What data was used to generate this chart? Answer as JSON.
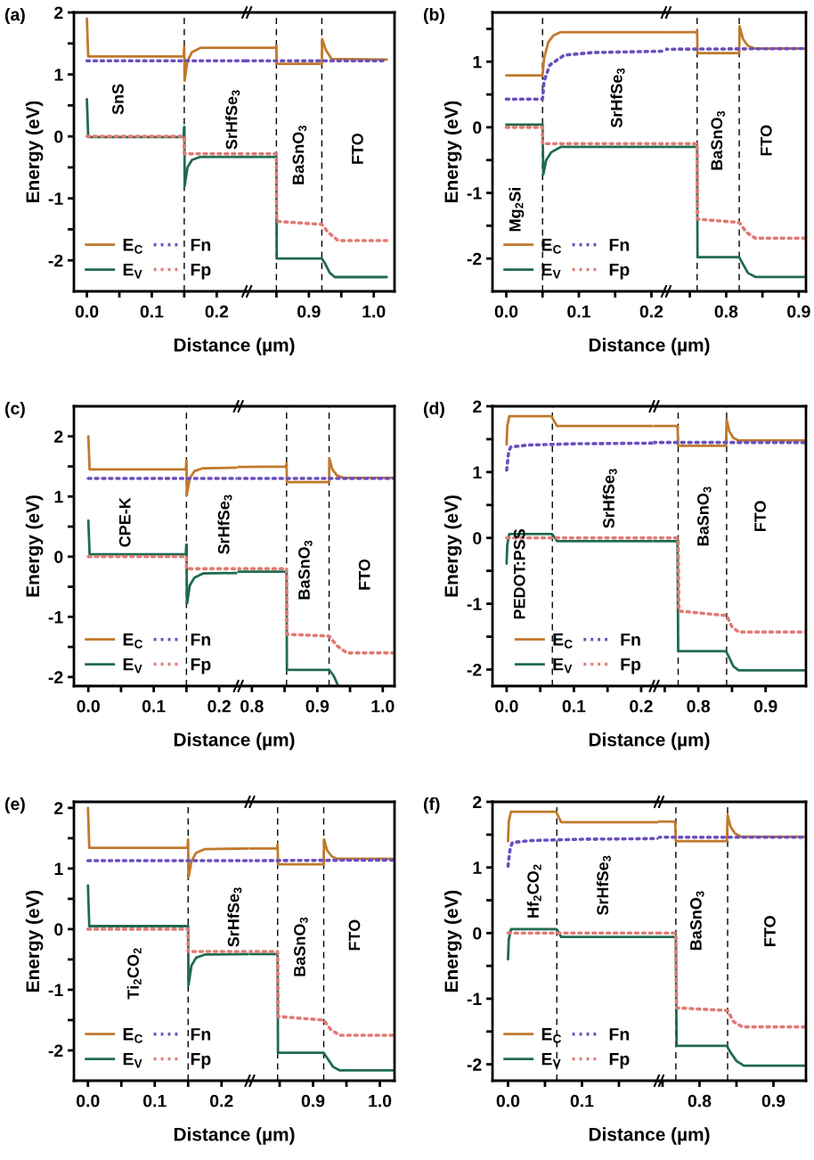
{
  "chart_data": [
    {
      "type": "line",
      "title": "(a)",
      "xlabel": "Distance (µm)",
      "ylabel": "Energy (eV)",
      "legend": "bottom left",
      "xlim": [
        -0.02,
        0.245
      ],
      "ylim": [
        -2.5,
        2
      ],
      "xticks": [
        {
          "value": 0,
          "label": "0.0"
        },
        {
          "value": 0.05,
          "label": null
        },
        {
          "value": 0.1,
          "label": "0.1"
        },
        {
          "value": 0.15,
          "label": null
        },
        {
          "value": 0.2,
          "label": "0.2"
        }
      ],
      "yticks": [
        -2,
        {
          "value": -1.5,
          "label": null
        },
        -1,
        {
          "value": -0.5,
          "label": null
        },
        0,
        {
          "value": 0.5,
          "label": null
        },
        1,
        {
          "value": 1.5,
          "label": null
        },
        2
      ],
      "series": [
        {
          "name": "E$_{C}$",
          "color": "#c0792c",
          "line_style": "solid",
          "x": [
            0,
            0.002,
            0.149,
            0.15,
            0.1505,
            0.155,
            0.162,
            0.175,
            0.245
          ],
          "values": [
            1.9,
            1.29,
            1.29,
            1.45,
            0.9,
            1.22,
            1.36,
            1.43,
            1.43
          ]
        },
        {
          "name": "E$_{V}$",
          "color": "#1f6b4f",
          "line_style": "solid",
          "x": [
            0,
            0.002,
            0.149,
            0.1497,
            0.1503,
            0.1506,
            0.155,
            0.162,
            0.175,
            0.245
          ],
          "values": [
            0.6,
            -0.01,
            -0.01,
            0.15,
            0.15,
            -0.8,
            -0.5,
            -0.38,
            -0.33,
            -0.33
          ]
        },
        {
          "name": "Fn",
          "color": "#6b4fbf",
          "line_style": "dotted",
          "x": [
            0,
            0.245
          ],
          "values": [
            1.22,
            1.22
          ]
        },
        {
          "name": "Fp",
          "color": "#e07b74",
          "line_style": "dotted",
          "x": [
            0,
            0.15,
            0.15,
            0.245
          ],
          "values": [
            0,
            0,
            -0.28,
            -0.28
          ]
        }
      ],
      "ref_lines": [
        {
          "axis": "x",
          "value": 0.15,
          "color": "#000000",
          "line_style": "dashed"
        }
      ],
      "annotations": [
        "SnS",
        "SrHfSe$_{3}$"
      ]
    },
    {
      "type": "line",
      "tick_labels": "x",
      "xlim": [
        0.803,
        1.032
      ],
      "ylim": [
        -2.5,
        2
      ],
      "xticks": [
        {
          "value": 0.85,
          "label": null
        },
        {
          "value": 0.9,
          "label": "0.9"
        },
        {
          "value": 0.95,
          "label": null
        },
        {
          "value": 1.0,
          "label": "1.0"
        }
      ],
      "series": [
        {
          "color": "#c0792c",
          "line_style": "solid",
          "x": [
            0.803,
            0.849,
            0.85,
            0.8505,
            0.92,
            0.9205,
            0.926,
            0.935,
            1.02
          ],
          "values": [
            1.43,
            1.43,
            1.47,
            1.17,
            1.17,
            1.57,
            1.4,
            1.25,
            1.24
          ]
        },
        {
          "color": "#1f6b4f",
          "line_style": "solid",
          "x": [
            0.803,
            0.85,
            0.8505,
            0.92,
            0.925,
            0.932,
            0.94,
            1.02
          ],
          "values": [
            -0.33,
            -0.33,
            -1.97,
            -1.97,
            -2.05,
            -2.2,
            -2.27,
            -2.27
          ]
        },
        {
          "color": "#6b4fbf",
          "line_style": "dotted",
          "x": [
            0.803,
            1.02
          ],
          "values": [
            1.22,
            1.22
          ]
        },
        {
          "color": "#e07b74",
          "line_style": "dotted",
          "x": [
            0.803,
            0.85,
            0.8505,
            0.92,
            0.93,
            0.945,
            1.02
          ],
          "values": [
            -0.28,
            -0.28,
            -1.37,
            -1.42,
            -1.55,
            -1.68,
            -1.68
          ]
        }
      ],
      "ref_lines": [
        {
          "axis": "x",
          "value": 0.85,
          "color": "#000000",
          "line_style": "dashed"
        },
        {
          "axis": "x",
          "value": 0.92,
          "color": "#000000",
          "line_style": "dashed"
        }
      ],
      "annotations": [
        "BaSnO$_{3}$",
        "FTO"
      ]
    },
    {
      "type": "line",
      "title": "(b)",
      "xlabel": "Distance (µm)",
      "ylabel": "Energy (eV)",
      "legend": "bottom left",
      "xlim": [
        -0.019,
        0.219
      ],
      "ylim": [
        -2.5,
        1.75
      ],
      "xticks": [
        {
          "value": 0,
          "label": "0.0"
        },
        {
          "value": 0.05,
          "label": null
        },
        {
          "value": 0.1,
          "label": "0.1"
        },
        {
          "value": 0.15,
          "label": null
        },
        {
          "value": 0.2,
          "label": "0.2"
        }
      ],
      "yticks": [
        -2,
        {
          "value": -1.5,
          "label": null
        },
        -1,
        {
          "value": -0.5,
          "label": null
        },
        0,
        {
          "value": 0.5,
          "label": null
        },
        1,
        {
          "value": 1.5,
          "label": null
        }
      ],
      "series": [
        {
          "name": "E$_{C}$",
          "color": "#c0792c",
          "line_style": "solid",
          "x": [
            0,
            0.05,
            0.052,
            0.058,
            0.065,
            0.075,
            0.219
          ],
          "values": [
            0.79,
            0.79,
            1.05,
            1.3,
            1.4,
            1.45,
            1.45
          ]
        },
        {
          "name": "E$_{V}$",
          "color": "#1f6b4f",
          "line_style": "solid",
          "x": [
            0,
            0.05,
            0.051,
            0.055,
            0.062,
            0.075,
            0.219
          ],
          "values": [
            0.04,
            0.04,
            -0.72,
            -0.5,
            -0.38,
            -0.3,
            -0.3
          ]
        },
        {
          "name": "Fn",
          "color": "#6b4fbf",
          "line_style": "dotted",
          "x": [
            0,
            0.05,
            0.052,
            0.06,
            0.08,
            0.12,
            0.219
          ],
          "values": [
            0.43,
            0.43,
            0.7,
            0.95,
            1.1,
            1.14,
            1.16
          ]
        },
        {
          "name": "Fp",
          "color": "#e07b74",
          "line_style": "dotted",
          "x": [
            0,
            0.05,
            0.05,
            0.219
          ],
          "values": [
            0,
            0,
            -0.25,
            -0.25
          ]
        }
      ],
      "ref_lines": [
        {
          "axis": "x",
          "value": 0.05,
          "color": "#000000",
          "line_style": "dashed"
        }
      ],
      "annotations": [
        "Mg$_{2}$Si",
        "SrHfSe$_{3}$"
      ]
    },
    {
      "type": "line",
      "tick_labels": "x",
      "xlim": [
        0.716,
        0.91
      ],
      "ylim": [
        -2.5,
        1.75
      ],
      "xticks": [
        {
          "value": 0.75,
          "label": null
        },
        {
          "value": 0.8,
          "label": "0.8"
        },
        {
          "value": 0.85,
          "label": null
        },
        {
          "value": 0.9,
          "label": "0.9"
        }
      ],
      "series": [
        {
          "color": "#c0792c",
          "line_style": "solid",
          "x": [
            0.716,
            0.759,
            0.76,
            0.7605,
            0.818,
            0.8185,
            0.823,
            0.83,
            0.84,
            0.91
          ],
          "values": [
            1.45,
            1.45,
            1.47,
            1.13,
            1.13,
            1.54,
            1.35,
            1.24,
            1.2,
            1.2
          ]
        },
        {
          "color": "#1f6b4f",
          "line_style": "solid",
          "x": [
            0.716,
            0.76,
            0.7605,
            0.818,
            0.823,
            0.83,
            0.84,
            0.91
          ],
          "values": [
            -0.3,
            -0.3,
            -1.98,
            -1.98,
            -2.08,
            -2.22,
            -2.28,
            -2.28
          ]
        },
        {
          "color": "#6b4fbf",
          "line_style": "dotted",
          "x": [
            0.716,
            0.91
          ],
          "values": [
            1.19,
            1.2
          ]
        },
        {
          "color": "#e07b74",
          "line_style": "dotted",
          "x": [
            0.716,
            0.76,
            0.7605,
            0.818,
            0.828,
            0.84,
            0.91
          ],
          "values": [
            -0.25,
            -0.25,
            -1.4,
            -1.45,
            -1.6,
            -1.69,
            -1.69
          ]
        }
      ],
      "ref_lines": [
        {
          "axis": "x",
          "value": 0.76,
          "color": "#000000",
          "line_style": "dashed"
        },
        {
          "axis": "x",
          "value": 0.818,
          "color": "#000000",
          "line_style": "dashed"
        }
      ],
      "annotations": [
        "BaSnO$_{3}$",
        "FTO"
      ]
    },
    {
      "type": "line",
      "title": "(c)",
      "xlabel": "Distance (µm)",
      "ylabel": "Energy (eV)",
      "legend": "bottom left",
      "xlim": [
        -0.022,
        0.228
      ],
      "ylim": [
        -2.15,
        2.5
      ],
      "xticks": [
        {
          "value": 0,
          "label": "0.0"
        },
        {
          "value": 0.05,
          "label": null
        },
        {
          "value": 0.1,
          "label": "0.1"
        },
        {
          "value": 0.15,
          "label": null
        },
        {
          "value": 0.2,
          "label": "0.2"
        }
      ],
      "yticks": [
        -2,
        {
          "value": -1.5,
          "label": null
        },
        -1,
        {
          "value": -0.5,
          "label": null
        },
        0,
        {
          "value": 0.5,
          "label": null
        },
        1,
        {
          "value": 1.5,
          "label": null
        },
        2
      ],
      "series": [
        {
          "name": "E$_{C}$",
          "color": "#c0792c",
          "line_style": "solid",
          "x": [
            0,
            0.002,
            0.149,
            0.15,
            0.1505,
            0.155,
            0.162,
            0.175,
            0.228
          ],
          "values": [
            2.0,
            1.45,
            1.45,
            1.6,
            1.02,
            1.3,
            1.42,
            1.47,
            1.48
          ]
        },
        {
          "name": "E$_{V}$",
          "color": "#1f6b4f",
          "line_style": "solid",
          "x": [
            0,
            0.002,
            0.149,
            0.1497,
            0.1503,
            0.1506,
            0.1512,
            0.155,
            0.162,
            0.175,
            0.228
          ],
          "values": [
            0.6,
            0.04,
            0.04,
            0.2,
            0.2,
            -0.77,
            -0.77,
            -0.48,
            -0.35,
            -0.28,
            -0.27
          ]
        },
        {
          "name": "Fn",
          "color": "#6b4fbf",
          "line_style": "dotted",
          "x": [
            0,
            0.228
          ],
          "values": [
            1.3,
            1.3
          ]
        },
        {
          "name": "Fp",
          "color": "#e07b74",
          "line_style": "dotted",
          "x": [
            0,
            0.15,
            0.15,
            0.228
          ],
          "values": [
            0,
            0,
            -0.2,
            -0.2
          ]
        }
      ],
      "ref_lines": [
        {
          "axis": "x",
          "value": 0.15,
          "color": "#000000",
          "line_style": "dashed"
        }
      ],
      "annotations": [
        "CPE-K",
        "SrHfSe$_{3}$"
      ]
    },
    {
      "type": "line",
      "tick_labels": "x",
      "xlim": [
        0.778,
        1.018
      ],
      "ylim": [
        -2.15,
        2.5
      ],
      "xticks": [
        {
          "value": 0.8,
          "label": "0.8"
        },
        {
          "value": 0.85,
          "label": null
        },
        {
          "value": 0.9,
          "label": "0.9"
        },
        {
          "value": 0.95,
          "label": null
        },
        {
          "value": 1.0,
          "label": "1.0"
        }
      ],
      "series": [
        {
          "color": "#c0792c",
          "line_style": "solid",
          "x": [
            0.778,
            0.852,
            0.853,
            0.8535,
            0.918,
            0.9185,
            0.923,
            0.93,
            0.94,
            1.018
          ],
          "values": [
            1.49,
            1.5,
            1.55,
            1.24,
            1.24,
            1.63,
            1.45,
            1.35,
            1.31,
            1.31
          ]
        },
        {
          "color": "#1f6b4f",
          "line_style": "solid",
          "x": [
            0.778,
            0.853,
            0.8535,
            0.918,
            0.925,
            0.932
          ],
          "values": [
            -0.25,
            -0.25,
            -1.88,
            -1.88,
            -1.98,
            -2.15
          ]
        },
        {
          "color": "#6b4fbf",
          "line_style": "dotted",
          "x": [
            0.778,
            1.018
          ],
          "values": [
            1.3,
            1.3
          ]
        },
        {
          "color": "#e07b74",
          "line_style": "dotted",
          "x": [
            0.778,
            0.853,
            0.8535,
            0.918,
            0.93,
            0.945,
            1.018
          ],
          "values": [
            -0.2,
            -0.2,
            -1.29,
            -1.32,
            -1.48,
            -1.6,
            -1.6
          ]
        }
      ],
      "ref_lines": [
        {
          "axis": "x",
          "value": 0.853,
          "color": "#000000",
          "line_style": "dashed"
        },
        {
          "axis": "x",
          "value": 0.918,
          "color": "#000000",
          "line_style": "dashed"
        }
      ],
      "annotations": [
        "BaSnO$_{3}$",
        "FTO"
      ]
    },
    {
      "type": "line",
      "title": "(d)",
      "xlabel": "Distance (µm)",
      "ylabel": "Energy (eV)",
      "legend": "bottom right",
      "xlim": [
        -0.021,
        0.218
      ],
      "ylim": [
        -2.25,
        2
      ],
      "xticks": [
        {
          "value": 0,
          "label": "0.0"
        },
        {
          "value": 0.05,
          "label": null
        },
        {
          "value": 0.1,
          "label": "0.1"
        },
        {
          "value": 0.15,
          "label": null
        },
        {
          "value": 0.2,
          "label": "0.2"
        }
      ],
      "yticks": [
        -2,
        {
          "value": -1.5,
          "label": null
        },
        -1,
        {
          "value": -0.5,
          "label": null
        },
        0,
        {
          "value": 0.5,
          "label": null
        },
        1,
        {
          "value": 1.5,
          "label": null
        },
        2
      ],
      "series": [
        {
          "name": "E$_{C}$",
          "color": "#c0792c",
          "line_style": "solid",
          "x": [
            0,
            0.001,
            0.004,
            0.067,
            0.069,
            0.075,
            0.218
          ],
          "values": [
            1.42,
            1.7,
            1.85,
            1.85,
            1.8,
            1.7,
            1.7
          ]
        },
        {
          "name": "E$_{V}$",
          "color": "#1f6b4f",
          "line_style": "solid",
          "x": [
            0,
            0.001,
            0.004,
            0.067,
            0.069,
            0.075,
            0.218
          ],
          "values": [
            -0.39,
            -0.1,
            0.06,
            0.06,
            0.04,
            -0.05,
            -0.05
          ]
        },
        {
          "name": "Fn",
          "color": "#6b4fbf",
          "line_style": "dotted",
          "x": [
            0,
            0.003,
            0.006,
            0.03,
            0.1,
            0.218
          ],
          "values": [
            1.03,
            1.3,
            1.38,
            1.41,
            1.43,
            1.44
          ]
        },
        {
          "name": "Fp",
          "color": "#e07b74",
          "line_style": "dotted",
          "x": [
            0,
            0.218
          ],
          "values": [
            0,
            0
          ]
        }
      ],
      "ref_lines": [
        {
          "axis": "x",
          "value": 0.068,
          "color": "#000000",
          "line_style": "dashed"
        }
      ],
      "annotations": [
        "PEDOT:PSS",
        "SrHfSe$_{3}$"
      ]
    },
    {
      "type": "line",
      "tick_labels": "x",
      "xlim": [
        0.733,
        0.96
      ],
      "ylim": [
        -2.25,
        2
      ],
      "xticks": [
        {
          "value": 0.75,
          "label": null
        },
        {
          "value": 0.8,
          "label": "0.8"
        },
        {
          "value": 0.85,
          "label": null
        },
        {
          "value": 0.9,
          "label": "0.9"
        }
      ],
      "series": [
        {
          "color": "#c0792c",
          "line_style": "solid",
          "x": [
            0.733,
            0.769,
            0.77,
            0.841,
            0.842,
            0.846,
            0.852,
            0.86,
            0.96
          ],
          "values": [
            1.7,
            1.7,
            1.4,
            1.4,
            1.8,
            1.62,
            1.52,
            1.48,
            1.48
          ]
        },
        {
          "color": "#1f6b4f",
          "line_style": "solid",
          "x": [
            0.733,
            0.769,
            0.77,
            0.841,
            0.846,
            0.852,
            0.86,
            0.96
          ],
          "values": [
            -0.05,
            -0.05,
            -1.72,
            -1.72,
            -1.82,
            -1.95,
            -2.01,
            -2.01
          ]
        },
        {
          "color": "#6b4fbf",
          "line_style": "dotted",
          "x": [
            0.733,
            0.96
          ],
          "values": [
            1.45,
            1.45
          ]
        },
        {
          "color": "#e07b74",
          "line_style": "dotted",
          "x": [
            0.733,
            0.77,
            0.771,
            0.842,
            0.85,
            0.86,
            0.96
          ],
          "values": [
            0,
            0,
            -1.11,
            -1.18,
            -1.35,
            -1.43,
            -1.43
          ]
        }
      ],
      "ref_lines": [
        {
          "axis": "x",
          "value": 0.77,
          "color": "#000000",
          "line_style": "dashed"
        },
        {
          "axis": "x",
          "value": 0.842,
          "color": "#000000",
          "line_style": "dashed"
        }
      ],
      "annotations": [
        "BaSnO$_{3}$",
        "FTO"
      ]
    },
    {
      "type": "line",
      "title": "(e)",
      "xlabel": "Distance (µm)",
      "ylabel": "Energy (eV)",
      "legend": "bottom left",
      "xlim": [
        -0.021,
        0.241
      ],
      "ylim": [
        -2.5,
        2.1
      ],
      "xticks": [
        {
          "value": 0,
          "label": "0.0"
        },
        {
          "value": 0.05,
          "label": null
        },
        {
          "value": 0.1,
          "label": "0.1"
        },
        {
          "value": 0.15,
          "label": null
        },
        {
          "value": 0.2,
          "label": "0.2"
        }
      ],
      "yticks": [
        -2,
        {
          "value": -1.5,
          "label": null
        },
        -1,
        {
          "value": -0.5,
          "label": null
        },
        0,
        {
          "value": 0.5,
          "label": null
        },
        1,
        {
          "value": 1.5,
          "label": null
        },
        2
      ],
      "series": [
        {
          "name": "E$_{C}$",
          "color": "#c0792c",
          "line_style": "solid",
          "x": [
            0,
            0.002,
            0.149,
            0.15,
            0.1505,
            0.155,
            0.162,
            0.175,
            0.241
          ],
          "values": [
            2.0,
            1.34,
            1.34,
            1.48,
            0.85,
            1.12,
            1.26,
            1.32,
            1.33
          ]
        },
        {
          "name": "E$_{V}$",
          "color": "#1f6b4f",
          "line_style": "solid",
          "x": [
            0,
            0.002,
            0.15,
            0.1505,
            0.155,
            0.162,
            0.175,
            0.241
          ],
          "values": [
            0.72,
            0.05,
            0.05,
            -0.92,
            -0.6,
            -0.47,
            -0.42,
            -0.41
          ]
        },
        {
          "name": "Fn",
          "color": "#6b4fbf",
          "line_style": "dotted",
          "x": [
            0,
            0.241
          ],
          "values": [
            1.13,
            1.13
          ]
        },
        {
          "name": "Fp",
          "color": "#e07b74",
          "line_style": "dotted",
          "x": [
            0,
            0.15,
            0.15,
            0.241
          ],
          "values": [
            0,
            0,
            -0.37,
            -0.37
          ]
        }
      ],
      "ref_lines": [
        {
          "axis": "x",
          "value": 0.15,
          "color": "#000000",
          "line_style": "dashed"
        }
      ],
      "annotations": [
        "Ti$_{2}$CO$_{2}$",
        "SrHfSe$_{3}$"
      ]
    },
    {
      "type": "line",
      "tick_labels": "x",
      "xlim": [
        0.804,
        1.022
      ],
      "ylim": [
        -2.5,
        2.1
      ],
      "xticks": [
        {
          "value": 0.85,
          "label": null
        },
        {
          "value": 0.9,
          "label": "0.9"
        },
        {
          "value": 0.95,
          "label": null
        },
        {
          "value": 1.0,
          "label": "1.0"
        }
      ],
      "series": [
        {
          "color": "#c0792c",
          "line_style": "solid",
          "x": [
            0.804,
            0.846,
            0.847,
            0.8475,
            0.916,
            0.9165,
            0.921,
            0.928,
            0.936,
            1.02
          ],
          "values": [
            1.33,
            1.33,
            1.4,
            1.07,
            1.07,
            1.48,
            1.3,
            1.2,
            1.16,
            1.16
          ]
        },
        {
          "color": "#1f6b4f",
          "line_style": "solid",
          "x": [
            0.804,
            0.847,
            0.8475,
            0.916,
            0.922,
            0.93,
            0.94,
            1.02
          ],
          "values": [
            -0.41,
            -0.41,
            -2.04,
            -2.04,
            -2.14,
            -2.27,
            -2.33,
            -2.33
          ]
        },
        {
          "color": "#6b4fbf",
          "line_style": "dotted",
          "x": [
            0.804,
            1.02
          ],
          "values": [
            1.13,
            1.14
          ]
        },
        {
          "color": "#e07b74",
          "line_style": "dotted",
          "x": [
            0.804,
            0.847,
            0.8475,
            0.916,
            0.926,
            0.94,
            1.02
          ],
          "values": [
            -0.37,
            -0.37,
            -1.44,
            -1.5,
            -1.65,
            -1.75,
            -1.75
          ]
        }
      ],
      "ref_lines": [
        {
          "axis": "x",
          "value": 0.847,
          "color": "#000000",
          "line_style": "dashed"
        },
        {
          "axis": "x",
          "value": 0.916,
          "color": "#000000",
          "line_style": "dashed"
        }
      ],
      "annotations": [
        "BaSnO$_{3}$",
        "FTO"
      ]
    },
    {
      "type": "line",
      "title": "(f)",
      "xlabel": "Distance (µm)",
      "ylabel": "Energy (eV)",
      "legend": "bottom left",
      "xlim": [
        -0.021,
        0.203
      ],
      "ylim": [
        -2.25,
        2
      ],
      "xticks": [
        {
          "value": 0,
          "label": "0.0"
        },
        {
          "value": 0.05,
          "label": null
        },
        {
          "value": 0.1,
          "label": "0.1"
        },
        {
          "value": 0.15,
          "label": null
        }
      ],
      "yticks": [
        -2,
        {
          "value": -1.5,
          "label": null
        },
        -1,
        {
          "value": -0.5,
          "label": null
        },
        0,
        {
          "value": 0.5,
          "label": null
        },
        1,
        {
          "value": 1.5,
          "label": null
        },
        2
      ],
      "series": [
        {
          "name": "E$_{C}$",
          "color": "#c0792c",
          "line_style": "solid",
          "x": [
            0,
            0.001,
            0.004,
            0.065,
            0.067,
            0.072,
            0.203
          ],
          "values": [
            1.4,
            1.7,
            1.85,
            1.85,
            1.8,
            1.69,
            1.69
          ]
        },
        {
          "name": "E$_{V}$",
          "color": "#1f6b4f",
          "line_style": "solid",
          "x": [
            0,
            0.001,
            0.004,
            0.065,
            0.067,
            0.072,
            0.203
          ],
          "values": [
            -0.4,
            -0.1,
            0.06,
            0.06,
            0.04,
            -0.06,
            -0.06
          ]
        },
        {
          "name": "Fn",
          "color": "#6b4fbf",
          "line_style": "dotted",
          "x": [
            0,
            0.003,
            0.006,
            0.03,
            0.1,
            0.203
          ],
          "values": [
            1.02,
            1.3,
            1.38,
            1.41,
            1.43,
            1.44
          ]
        },
        {
          "name": "Fp",
          "color": "#e07b74",
          "line_style": "dotted",
          "x": [
            0,
            0.203
          ],
          "values": [
            0,
            0
          ]
        }
      ],
      "ref_lines": [
        {
          "axis": "x",
          "value": 0.066,
          "color": "#000000",
          "line_style": "dashed"
        }
      ],
      "annotations": [
        "Hf$_{2}$CO$_{2}$",
        "SrHfSe$_{3}$"
      ]
    },
    {
      "type": "line",
      "tick_labels": "x",
      "xlim": [
        0.744,
        0.944
      ],
      "ylim": [
        -2.25,
        2
      ],
      "xticks": [
        {
          "value": 0.75,
          "label": null
        },
        {
          "value": 0.8,
          "label": "0.8"
        },
        {
          "value": 0.85,
          "label": null
        },
        {
          "value": 0.9,
          "label": "0.9"
        }
      ],
      "series": [
        {
          "color": "#c0792c",
          "line_style": "solid",
          "x": [
            0.744,
            0.767,
            0.768,
            0.837,
            0.838,
            0.842,
            0.848,
            0.856,
            0.944
          ],
          "values": [
            1.7,
            1.7,
            1.4,
            1.4,
            1.8,
            1.62,
            1.52,
            1.47,
            1.47
          ]
        },
        {
          "color": "#1f6b4f",
          "line_style": "solid",
          "x": [
            0.744,
            0.768,
            0.769,
            0.837,
            0.842,
            0.85,
            0.86,
            0.944
          ],
          "values": [
            -0.06,
            -0.06,
            -1.72,
            -1.72,
            -1.82,
            -1.95,
            -2.02,
            -2.02
          ]
        },
        {
          "color": "#6b4fbf",
          "line_style": "dotted",
          "x": [
            0.744,
            0.944
          ],
          "values": [
            1.46,
            1.46
          ]
        },
        {
          "color": "#e07b74",
          "line_style": "dotted",
          "x": [
            0.744,
            0.768,
            0.769,
            0.838,
            0.846,
            0.858,
            0.944
          ],
          "values": [
            0,
            0,
            -1.14,
            -1.18,
            -1.35,
            -1.43,
            -1.43
          ]
        }
      ],
      "ref_lines": [
        {
          "axis": "x",
          "value": 0.768,
          "color": "#000000",
          "line_style": "dashed"
        },
        {
          "axis": "x",
          "value": 0.838,
          "color": "#000000",
          "line_style": "dashed"
        }
      ],
      "annotations": [
        "BaSnO$_{3}$",
        "FTO"
      ]
    }
  ]
}
